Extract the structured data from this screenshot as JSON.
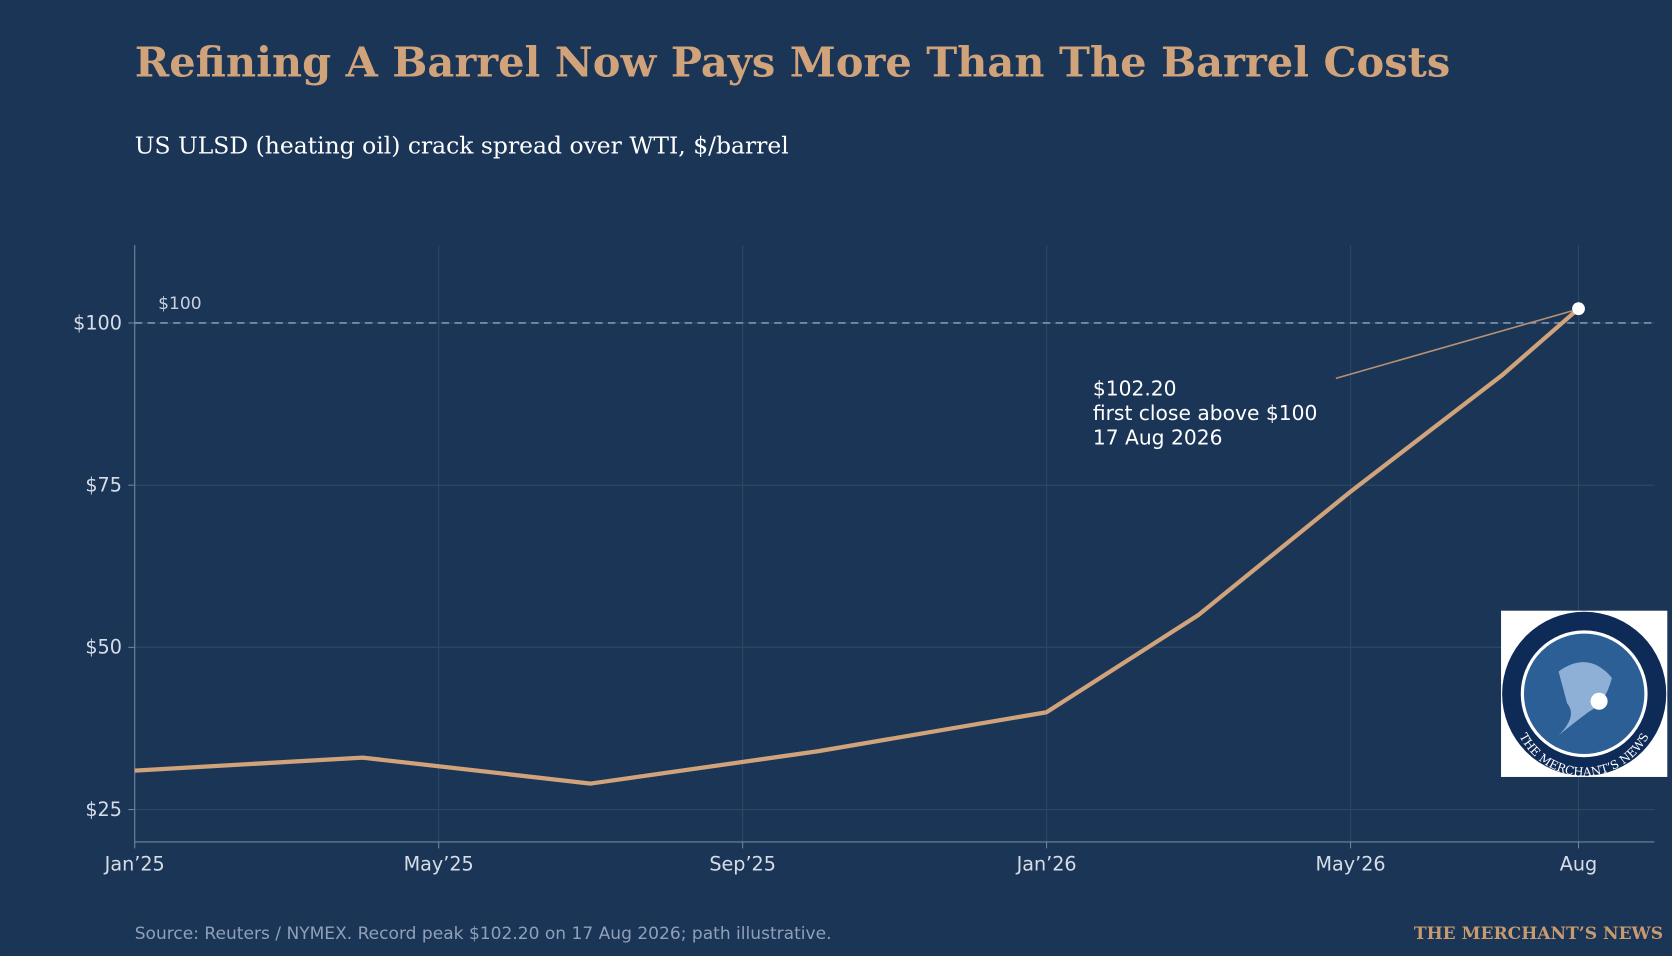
{
  "chart_data": {
    "type": "line",
    "title": "Refining A Barrel Now Pays More Than The Barrel Costs",
    "subtitle": "US ULSD (heating oil) crack spread over WTI, $/barrel",
    "x": [
      "2025-01",
      "2025-04",
      "2025-07",
      "2025-10",
      "2026-01",
      "2026-03",
      "2026-05",
      "2026-07",
      "2026-08"
    ],
    "series": [
      {
        "color": "#d0a37a",
        "values": [
          31,
          33,
          29,
          34,
          40,
          55,
          74,
          92,
          102.2
        ]
      }
    ],
    "xlim": [
      "2025-01",
      "2026-09"
    ],
    "xticks": [
      {
        "value": "2025-01",
        "label": "Jan’25"
      },
      {
        "value": "2025-05",
        "label": "May’25"
      },
      {
        "value": "2025-09",
        "label": "Sep’25"
      },
      {
        "value": "2026-01",
        "label": "Jan’26"
      },
      {
        "value": "2026-05",
        "label": "May’26"
      },
      {
        "value": "2026-08",
        "label": "Aug"
      }
    ],
    "ylim": [
      20,
      112
    ],
    "yticks": [
      {
        "value": 25,
        "label": "$25"
      },
      {
        "value": 50,
        "label": "$50"
      },
      {
        "value": 75,
        "label": "$75"
      },
      {
        "value": 100,
        "label": "$100"
      }
    ],
    "grid": true,
    "reference_line": {
      "value": 100,
      "label": "$100"
    },
    "annotation": [
      "$102.20",
      "first close above $100",
      "17 Aug 2026"
    ],
    "source": "Source: Reuters / NYMEX. Record peak $102.20 on 17 Aug 2026; path illustrative.",
    "brand": "THE MERCHANT’S NEWS",
    "logo_text": "THE MERCHANT’S NEWS"
  }
}
